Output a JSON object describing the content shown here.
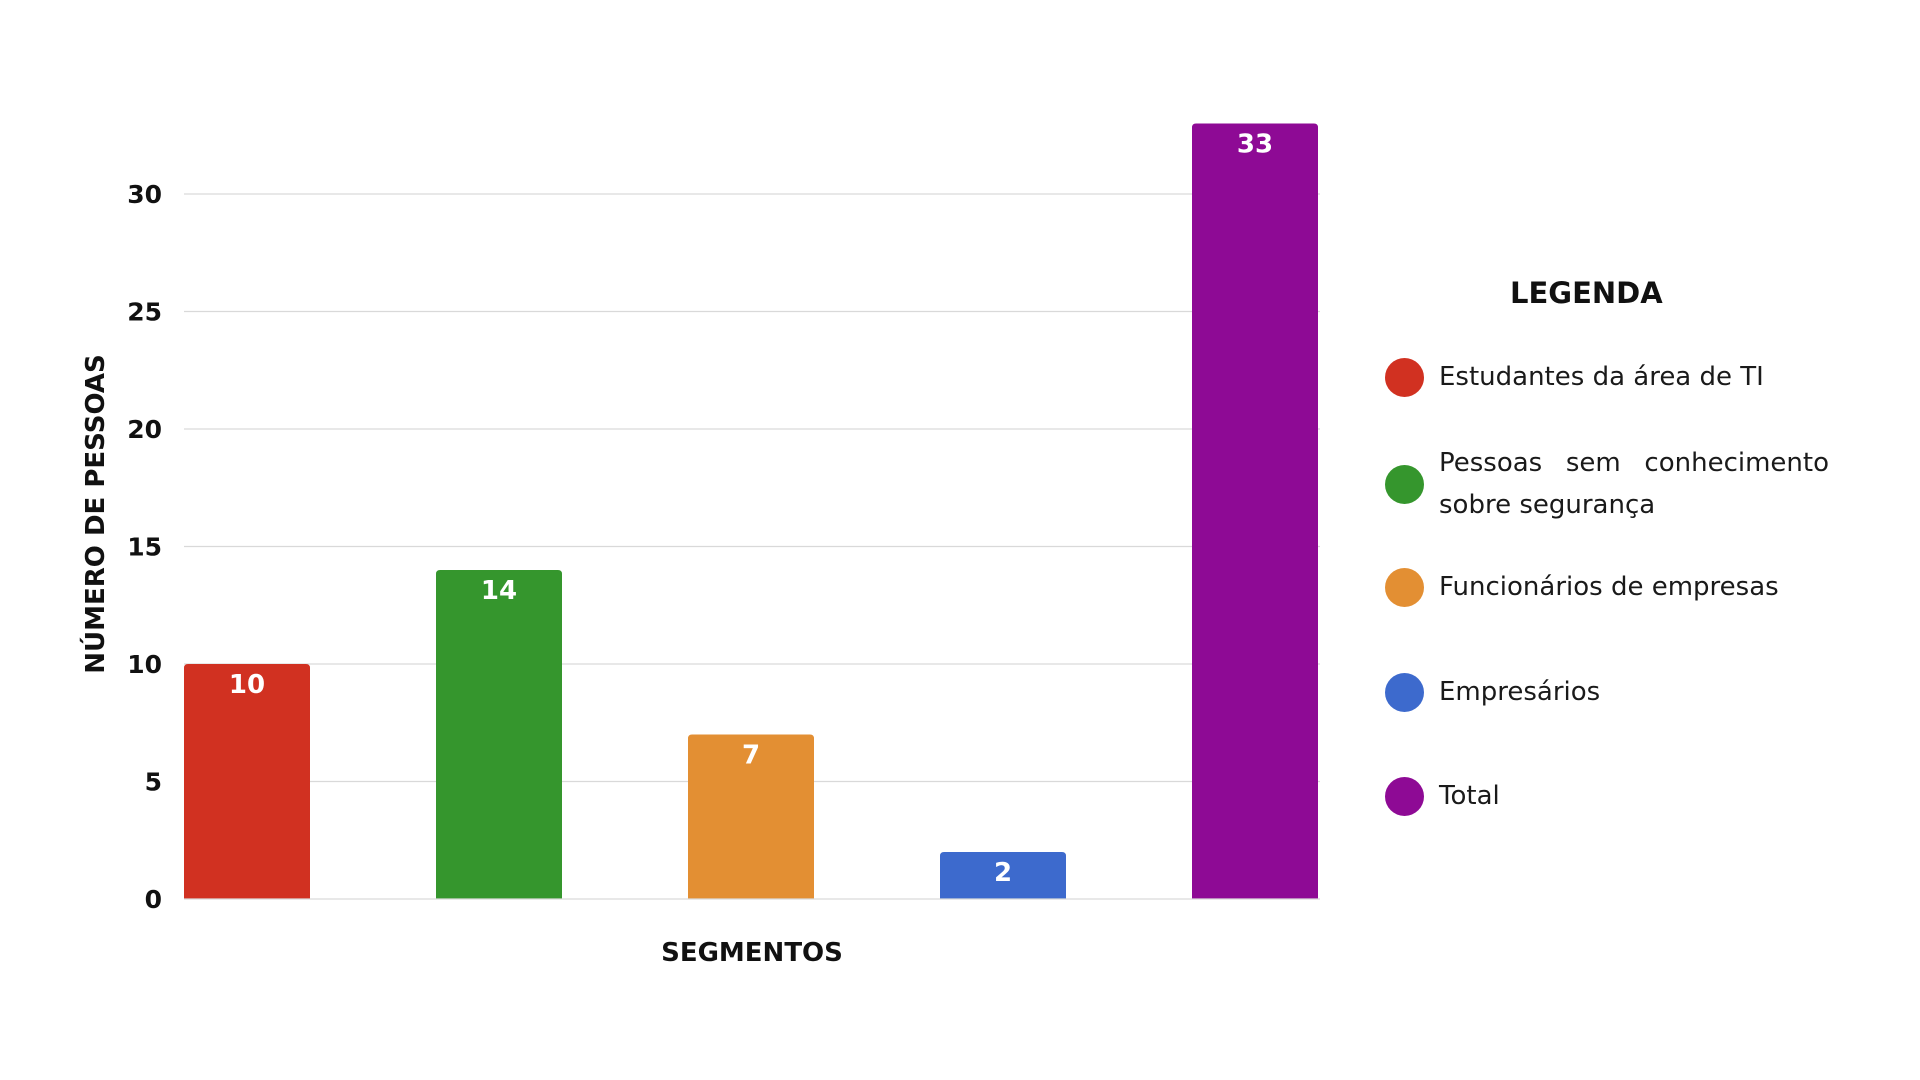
{
  "chart_data": {
    "type": "bar",
    "categories": [
      "Estudantes da área de TI",
      "Pessoas sem conhecimento sobre segurança",
      "Funcionários de empresas",
      "Empresários",
      "Total"
    ],
    "values": [
      10,
      14,
      7,
      2,
      33
    ],
    "colors": [
      "#d13121",
      "#35962d",
      "#e38f33",
      "#3d6acd",
      "#8e0a95"
    ],
    "xlabel": "SEGMENTOS",
    "ylabel": "NÚMERO DE PESSOAS",
    "ylim": [
      0,
      33
    ],
    "yticks": [
      0,
      5,
      10,
      15,
      20,
      25,
      30
    ],
    "grid": true,
    "legend_placement": "right",
    "legend_title": "LEGENDA"
  }
}
